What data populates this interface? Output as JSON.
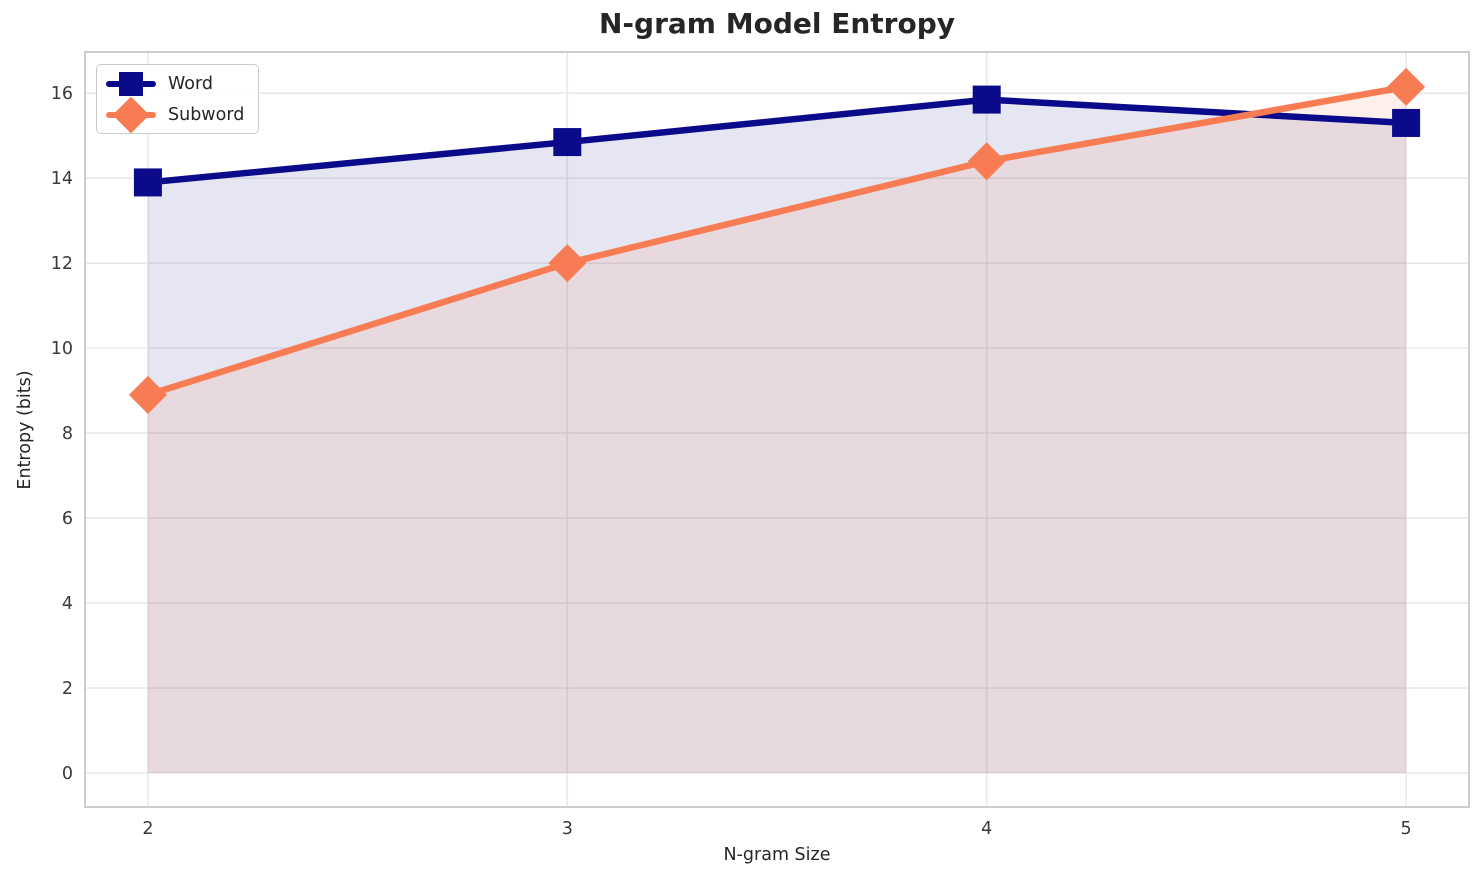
{
  "chart_data": {
    "type": "line",
    "title": "N-gram Model Entropy",
    "xlabel": "N-gram Size",
    "ylabel": "Entropy (bits)",
    "x": [
      2,
      3,
      4,
      5
    ],
    "xticks": [
      2,
      3,
      4,
      5
    ],
    "yticks": [
      0,
      2,
      4,
      6,
      8,
      10,
      12,
      14,
      16
    ],
    "xlim": [
      1.85,
      5.15
    ],
    "ylim": [
      -0.8,
      16.97
    ],
    "grid": true,
    "area_fill_to_zero": true,
    "legend_position": "upper left",
    "series": [
      {
        "name": "Word",
        "marker": "square",
        "color": "#0a0a8a",
        "fill_opacity": 0.1,
        "values": [
          13.9,
          14.85,
          15.85,
          15.3
        ]
      },
      {
        "name": "Subword",
        "marker": "diamond",
        "color": "#f87c53",
        "fill_opacity": 0.12,
        "values": [
          8.9,
          12.0,
          14.4,
          16.15
        ]
      }
    ]
  },
  "colors": {
    "background": "#ffffff",
    "grid": "#e9e9e9",
    "spine": "#cdcdcd",
    "title_text": "#262626",
    "tick_text": "#3a3a3a"
  }
}
